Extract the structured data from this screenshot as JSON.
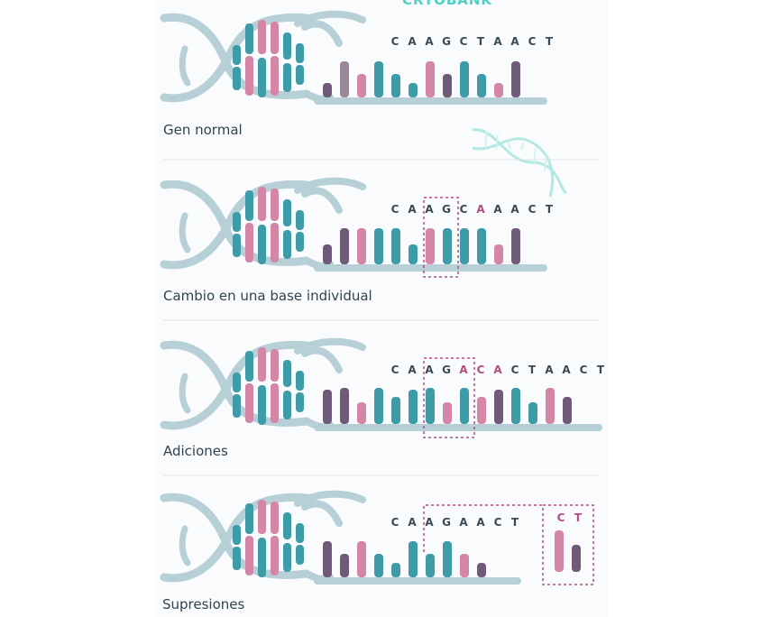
{
  "brand": "CRYOBANK",
  "colors": {
    "helix": "#b7cfd6",
    "teal": "#3e9ba8",
    "dark_teal": "#2f8790",
    "pink": "#d585a6",
    "purple": "#6f5a77",
    "mauve": "#9a8799",
    "highlight": "#b04e84",
    "divider": "#dde4e8",
    "logo": "#4fd1c5",
    "caption": "#2f4450"
  },
  "icons": {
    "logo_watermark": "dna-helix-icon"
  },
  "rows": [
    {
      "id": "normal",
      "caption": "Gen normal",
      "sequence": [
        "C",
        "A",
        "A",
        "G",
        "C",
        "T",
        "A",
        "A",
        "C",
        "T"
      ],
      "highlight": []
    },
    {
      "id": "substitution",
      "caption": "Cambio en una base individual",
      "sequence": [
        "C",
        "A",
        "A",
        "G",
        "C",
        "A",
        "A",
        "A",
        "C",
        "T"
      ],
      "highlight": [
        5
      ]
    },
    {
      "id": "addition",
      "caption": "Adiciones",
      "sequence": [
        "C",
        "A",
        "A",
        "G",
        "A",
        "C",
        "A",
        "C",
        "T",
        "A",
        "A",
        "C",
        "T"
      ],
      "highlight": [
        4,
        5,
        6
      ]
    },
    {
      "id": "deletion",
      "caption": "Supresiones",
      "sequence": [
        "C",
        "A",
        "A",
        "G",
        "A",
        "A",
        "C",
        "T"
      ],
      "removed": [
        "C",
        "T"
      ]
    }
  ]
}
